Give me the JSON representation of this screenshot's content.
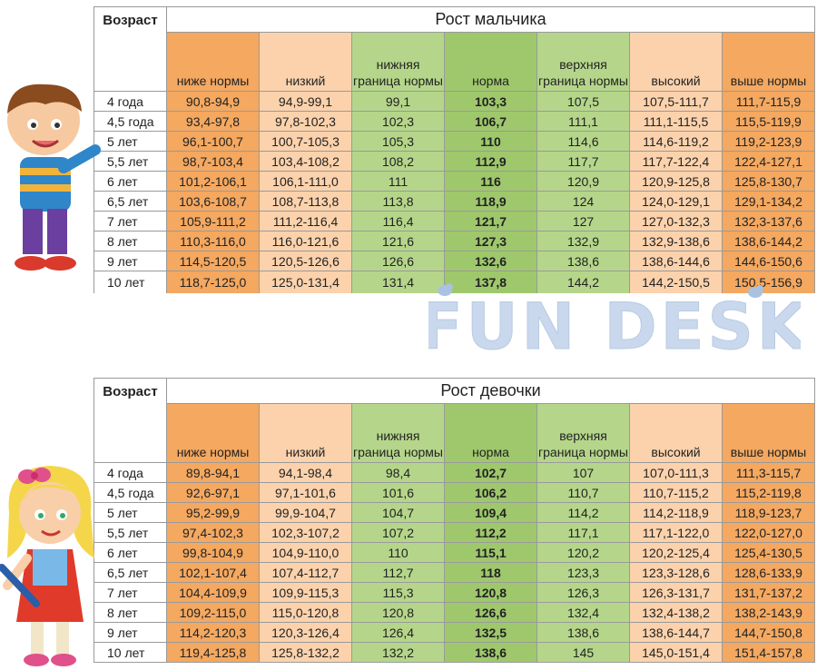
{
  "boy_table": {
    "title": "Рост мальчика",
    "age_header": "Возраст",
    "columns": [
      "ниже нормы",
      "низкий",
      "нижняя граница нормы",
      "норма",
      "верхняя граница нормы",
      "высокий",
      "выше нормы"
    ],
    "rows": [
      [
        "4 года",
        "90,8-94,9",
        "94,9-99,1",
        "99,1",
        "103,3",
        "107,5",
        "107,5-111,7",
        "111,7-115,9"
      ],
      [
        "4,5 года",
        "93,4-97,8",
        "97,8-102,3",
        "102,3",
        "106,7",
        "111,1",
        "111,1-115,5",
        "115,5-119,9"
      ],
      [
        "5 лет",
        "96,1-100,7",
        "100,7-105,3",
        "105,3",
        "110",
        "114,6",
        "114,6-119,2",
        "119,2-123,9"
      ],
      [
        "5,5 лет",
        "98,7-103,4",
        "103,4-108,2",
        "108,2",
        "112,9",
        "117,7",
        "117,7-122,4",
        "122,4-127,1"
      ],
      [
        "6 лет",
        "101,2-106,1",
        "106,1-111,0",
        "111",
        "116",
        "120,9",
        "120,9-125,8",
        "125,8-130,7"
      ],
      [
        "6,5 лет",
        "103,6-108,7",
        "108,7-113,8",
        "113,8",
        "118,9",
        "124",
        "124,0-129,1",
        "129,1-134,2"
      ],
      [
        "7 лет",
        "105,9-111,2",
        "111,2-116,4",
        "116,4",
        "121,7",
        "127",
        "127,0-132,3",
        "132,3-137,6"
      ],
      [
        "8 лет",
        "110,3-116,0",
        "116,0-121,6",
        "121,6",
        "127,3",
        "132,9",
        "132,9-138,6",
        "138,6-144,2"
      ],
      [
        "9 лет",
        "114,5-120,5",
        "120,5-126,6",
        "126,6",
        "132,6",
        "138,6",
        "138,6-144,6",
        "144,6-150,6"
      ],
      [
        "10 лет",
        "118,7-125,0",
        "125,0-131,4",
        "131,4",
        "137,8",
        "144,2",
        "144,2-150,5",
        "150,5-156,9"
      ]
    ]
  },
  "girl_table": {
    "title": "Рост девочки",
    "age_header": "Возраст",
    "columns": [
      "ниже нормы",
      "низкий",
      "нижняя граница нормы",
      "норма",
      "верхняя граница нормы",
      "высокий",
      "выше нормы"
    ],
    "rows": [
      [
        "4 года",
        "89,8-94,1",
        "94,1-98,4",
        "98,4",
        "102,7",
        "107",
        "107,0-111,3",
        "111,3-115,7"
      ],
      [
        "4,5 года",
        "92,6-97,1",
        "97,1-101,6",
        "101,6",
        "106,2",
        "110,7",
        "110,7-115,2",
        "115,2-119,8"
      ],
      [
        "5 лет",
        "95,2-99,9",
        "99,9-104,7",
        "104,7",
        "109,4",
        "114,2",
        "114,2-118,9",
        "118,9-123,7"
      ],
      [
        "5,5 лет",
        "97,4-102,3",
        "102,3-107,2",
        "107,2",
        "112,2",
        "117,1",
        "117,1-122,0",
        "122,0-127,0"
      ],
      [
        "6 лет",
        "99,8-104,9",
        "104,9-110,0",
        "110",
        "115,1",
        "120,2",
        "120,2-125,4",
        "125,4-130,5"
      ],
      [
        "6,5 лет",
        "102,1-107,4",
        "107,4-112,7",
        "112,7",
        "118",
        "123,3",
        "123,3-128,6",
        "128,6-133,9"
      ],
      [
        "7 лет",
        "104,4-109,9",
        "109,9-115,3",
        "115,3",
        "120,8",
        "126,3",
        "126,3-131,7",
        "131,7-137,2"
      ],
      [
        "8 лет",
        "109,2-115,0",
        "115,0-120,8",
        "120,8",
        "126,6",
        "132,4",
        "132,4-138,2",
        "138,2-143,9"
      ],
      [
        "9 лет",
        "114,2-120,3",
        "120,3-126,4",
        "126,4",
        "132,5",
        "138,6",
        "138,6-144,7",
        "144,7-150,8"
      ],
      [
        "10 лет",
        "119,4-125,8",
        "125,8-132,2",
        "132,2",
        "138,6",
        "145",
        "145,0-151,4",
        "151,4-157,8"
      ]
    ]
  },
  "logo": {
    "text": "FUN DESK"
  },
  "colors": {
    "orange_dark": "#f4a860",
    "orange_light": "#fbd2ac",
    "green_light": "#b5d68a",
    "green_dark": "#9fc86c"
  }
}
